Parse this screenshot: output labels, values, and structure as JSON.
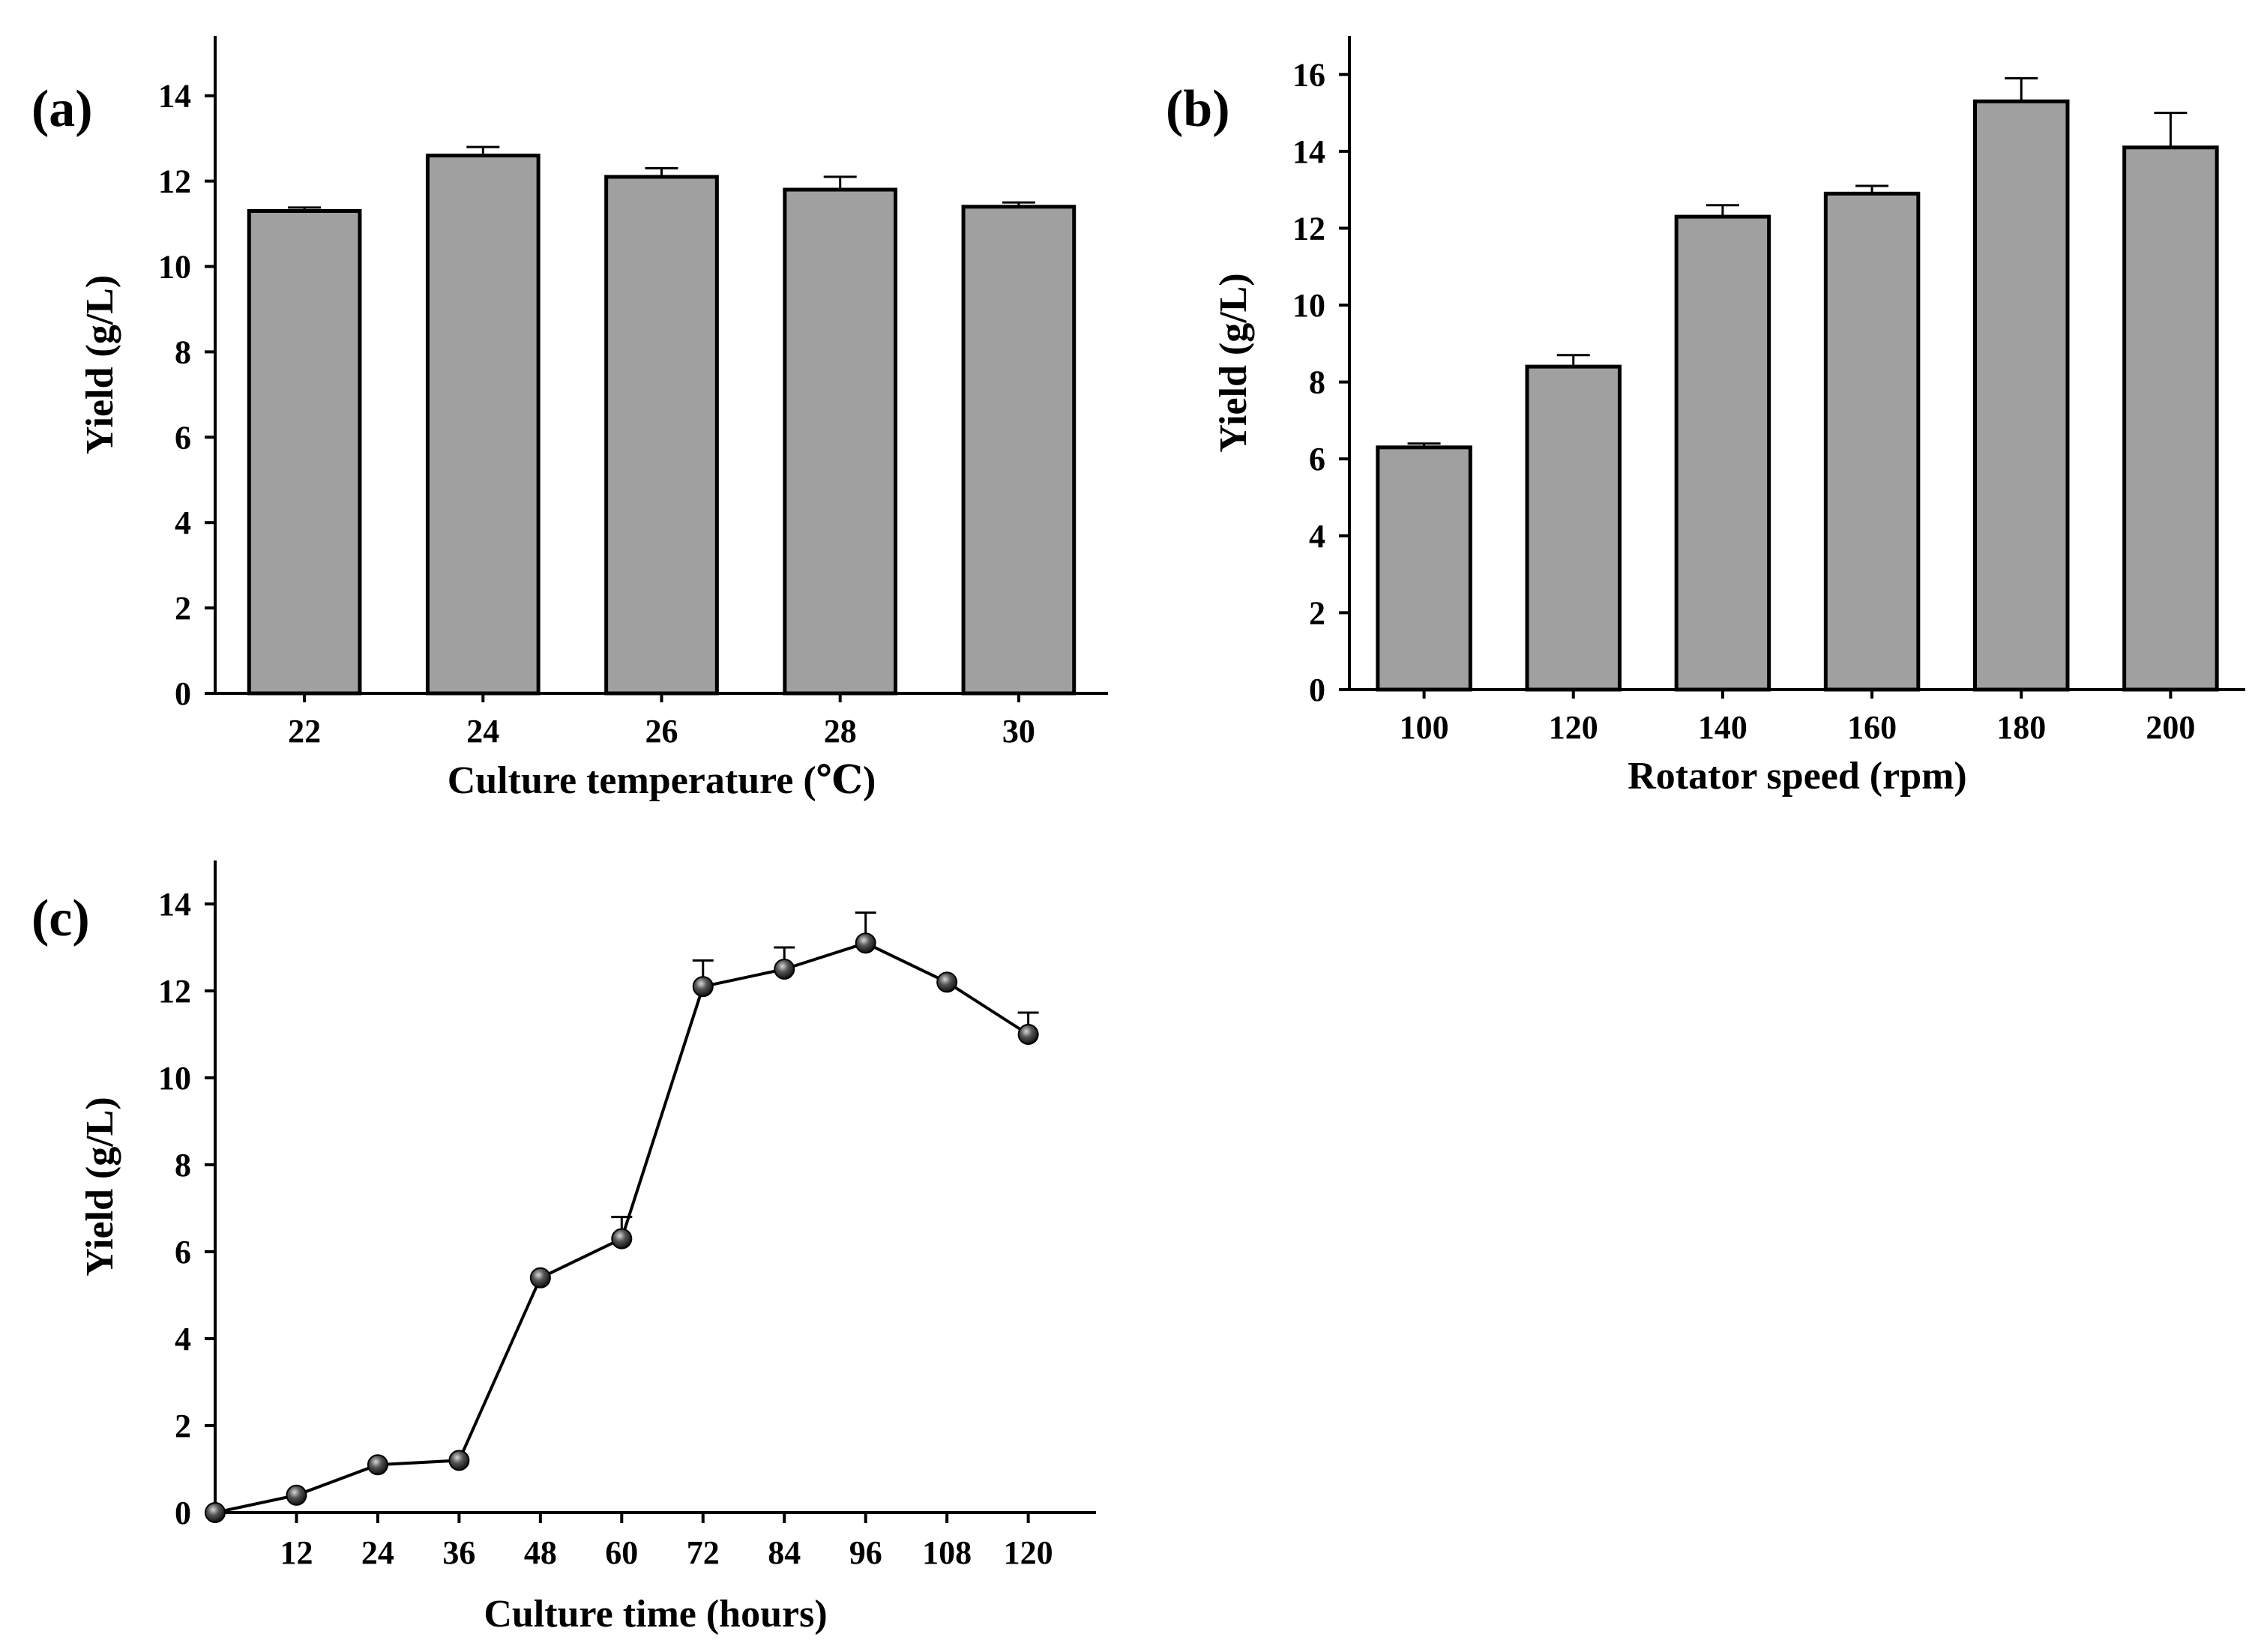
{
  "chart_data": [
    {
      "panel": "(a)",
      "type": "bar",
      "title": "",
      "xlabel": "Culture temperature (℃)",
      "ylabel": "Yield (g/L)",
      "categories": [
        "22",
        "24",
        "26",
        "28",
        "30"
      ],
      "values": [
        11.3,
        12.6,
        12.1,
        11.8,
        11.4
      ],
      "errors": [
        0.08,
        0.2,
        0.2,
        0.3,
        0.1
      ],
      "ylim": [
        0,
        15.4
      ],
      "yticks": [
        "0",
        "2",
        "4",
        "6",
        "8",
        "10",
        "12",
        "14"
      ],
      "bar_color": "#a0a0a0",
      "grid": false
    },
    {
      "panel": "(b)",
      "type": "bar",
      "title": "",
      "xlabel": "Rotator speed (rpm)",
      "ylabel": "Yield (g/L)",
      "categories": [
        "100",
        "120",
        "140",
        "160",
        "180",
        "200"
      ],
      "values": [
        6.3,
        8.4,
        12.3,
        12.9,
        15.3,
        14.1
      ],
      "errors": [
        0.1,
        0.3,
        0.3,
        0.2,
        0.6,
        0.9
      ],
      "ylim": [
        0,
        17
      ],
      "yticks": [
        "0",
        "2",
        "4",
        "6",
        "8",
        "10",
        "12",
        "14",
        "16"
      ],
      "bar_color": "#a0a0a0",
      "grid": false
    },
    {
      "panel": "(c)",
      "type": "line",
      "title": "",
      "xlabel": "Culture time (hours)",
      "ylabel": "Yield (g/L)",
      "x": [
        0,
        12,
        24,
        36,
        48,
        60,
        72,
        84,
        96,
        108,
        120
      ],
      "values": [
        0,
        0.4,
        1.1,
        1.2,
        5.4,
        6.3,
        12.1,
        12.5,
        13.1,
        12.2,
        11.0
      ],
      "errors": [
        0,
        0,
        0,
        0,
        0,
        0.5,
        0.6,
        0.5,
        0.7,
        0,
        0.5
      ],
      "xticks": [
        "12",
        "24",
        "36",
        "48",
        "60",
        "72",
        "84",
        "96",
        "108",
        "120"
      ],
      "xlim": [
        0,
        130
      ],
      "ylim": [
        0,
        15
      ],
      "yticks": [
        "0",
        "2",
        "4",
        "6",
        "8",
        "10",
        "12",
        "14"
      ],
      "marker_color": "#111111",
      "grid": false
    }
  ]
}
